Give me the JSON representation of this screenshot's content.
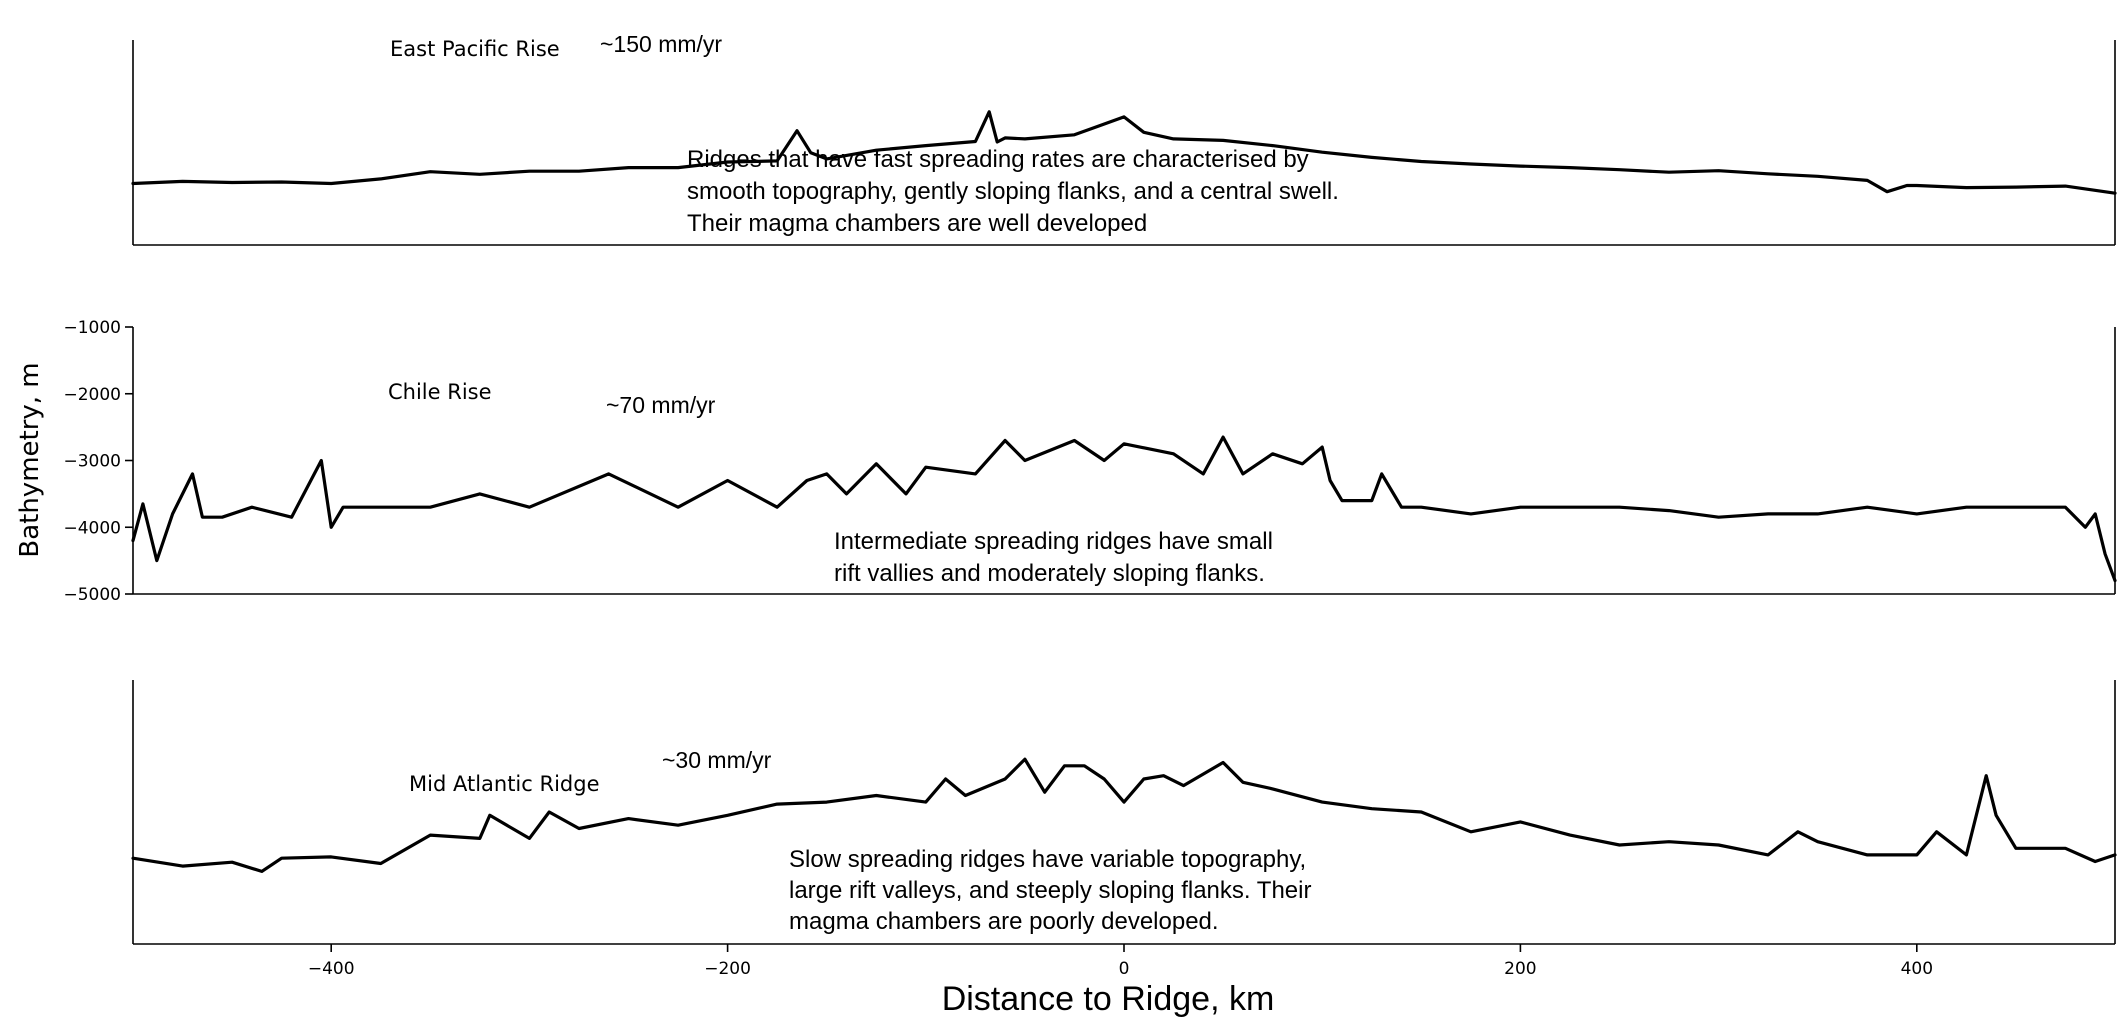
{
  "chart_data": {
    "type": "line",
    "ylabel": "Bathymetry, m",
    "xlabel": "Distance to Ridge, km",
    "xlim": [
      -500,
      500
    ],
    "x_ticks": [
      -400,
      -200,
      0,
      200,
      400
    ],
    "x_tick_labels": [
      "−400",
      "−200",
      "0",
      "200",
      "400"
    ],
    "ylim": [
      -5000,
      -1000
    ],
    "y_ticks": [
      -1000,
      -2000,
      -3000,
      -4000,
      -5000
    ],
    "y_tick_labels": [
      "−1000",
      "−2000",
      "−3000",
      "−4000",
      "−5000"
    ],
    "grid": false,
    "panels": [
      {
        "id": "epr",
        "name": "East Pacific Rise",
        "rate": "~150 mm/yr",
        "annotation": [
          "Ridges that have fast spreading rates are characterised by",
          "smooth topography, gently sloping flanks, and a central swell.",
          "Their magma chambers are well developed"
        ],
        "x": [
          -500,
          -475,
          -450,
          -425,
          -400,
          -375,
          -350,
          -325,
          -300,
          -275,
          -250,
          -225,
          -200,
          -175,
          -165,
          -158,
          -150,
          -125,
          -100,
          -75,
          -68,
          -64,
          -60,
          -50,
          -25,
          0,
          10,
          25,
          50,
          75,
          100,
          125,
          150,
          175,
          200,
          225,
          250,
          275,
          300,
          325,
          350,
          375,
          385,
          395,
          400,
          425,
          450,
          475,
          500
        ],
        "values": [
          -3800,
          -3760,
          -3780,
          -3770,
          -3800,
          -3710,
          -3570,
          -3620,
          -3560,
          -3560,
          -3490,
          -3490,
          -3380,
          -3360,
          -2770,
          -3200,
          -3320,
          -3150,
          -3060,
          -2980,
          -2400,
          -2990,
          -2910,
          -2930,
          -2850,
          -2500,
          -2800,
          -2930,
          -2960,
          -3060,
          -3190,
          -3290,
          -3370,
          -3420,
          -3460,
          -3490,
          -3530,
          -3580,
          -3550,
          -3610,
          -3660,
          -3740,
          -3960,
          -3840,
          -3840,
          -3880,
          -3870,
          -3850,
          -3990
        ]
      },
      {
        "id": "chile",
        "name": "Chile Rise",
        "rate": "~70 mm/yr",
        "annotation": [
          "Intermediate spreading ridges have small",
          "rift vallies and moderately sloping flanks."
        ],
        "x": [
          -500,
          -495,
          -488,
          -480,
          -470,
          -465,
          -455,
          -440,
          -420,
          -405,
          -400,
          -394,
          -380,
          -350,
          -325,
          -300,
          -260,
          -225,
          -200,
          -175,
          -160,
          -150,
          -140,
          -125,
          -110,
          -100,
          -75,
          -60,
          -50,
          -25,
          -10,
          0,
          25,
          40,
          50,
          60,
          75,
          90,
          100,
          104,
          110,
          125,
          130,
          140,
          150,
          175,
          200,
          225,
          250,
          275,
          300,
          325,
          350,
          375,
          400,
          425,
          450,
          475,
          485,
          490,
          495,
          500
        ],
        "values": [
          -4200,
          -3650,
          -4500,
          -3800,
          -3200,
          -3850,
          -3850,
          -3700,
          -3850,
          -3000,
          -4000,
          -3700,
          -3700,
          -3700,
          -3500,
          -3700,
          -3200,
          -3700,
          -3300,
          -3700,
          -3300,
          -3200,
          -3500,
          -3050,
          -3500,
          -3100,
          -3200,
          -2700,
          -3000,
          -2700,
          -3000,
          -2750,
          -2900,
          -3200,
          -2650,
          -3200,
          -2900,
          -3050,
          -2800,
          -3300,
          -3600,
          -3600,
          -3200,
          -3700,
          -3700,
          -3800,
          -3700,
          -3700,
          -3700,
          -3750,
          -3850,
          -3800,
          -3800,
          -3700,
          -3800,
          -3700,
          -3700,
          -3700,
          -4000,
          -3800,
          -4400,
          -4800
        ]
      },
      {
        "id": "mar",
        "name": "Mid Atlantic Ridge",
        "rate": "~30 mm/yr",
        "annotation": [
          "Slow spreading ridges have variable topography,",
          "large rift valleys, and steeply sloping flanks. Their",
          "magma chambers are poorly developed."
        ],
        "x": [
          -500,
          -475,
          -450,
          -435,
          -425,
          -400,
          -375,
          -350,
          -325,
          -320,
          -300,
          -290,
          -275,
          -250,
          -225,
          -200,
          -175,
          -150,
          -125,
          -100,
          -90,
          -80,
          -60,
          -50,
          -40,
          -30,
          -20,
          -10,
          0,
          10,
          20,
          30,
          50,
          60,
          75,
          100,
          125,
          150,
          175,
          200,
          225,
          250,
          275,
          300,
          325,
          340,
          350,
          375,
          400,
          410,
          425,
          435,
          440,
          450,
          475,
          490,
          500
        ],
        "values": [
          -3700,
          -3820,
          -3760,
          -3900,
          -3700,
          -3680,
          -3780,
          -3350,
          -3400,
          -3050,
          -3400,
          -3000,
          -3250,
          -3100,
          -3200,
          -3050,
          -2880,
          -2850,
          -2750,
          -2850,
          -2500,
          -2750,
          -2500,
          -2200,
          -2700,
          -2300,
          -2300,
          -2500,
          -2850,
          -2500,
          -2450,
          -2600,
          -2250,
          -2550,
          -2650,
          -2850,
          -2950,
          -3000,
          -3300,
          -3150,
          -3350,
          -3500,
          -3450,
          -3500,
          -3650,
          -3300,
          -3450,
          -3650,
          -3650,
          -3300,
          -3650,
          -2450,
          -3050,
          -3550,
          -3550,
          -3750,
          -3650
        ]
      }
    ]
  }
}
